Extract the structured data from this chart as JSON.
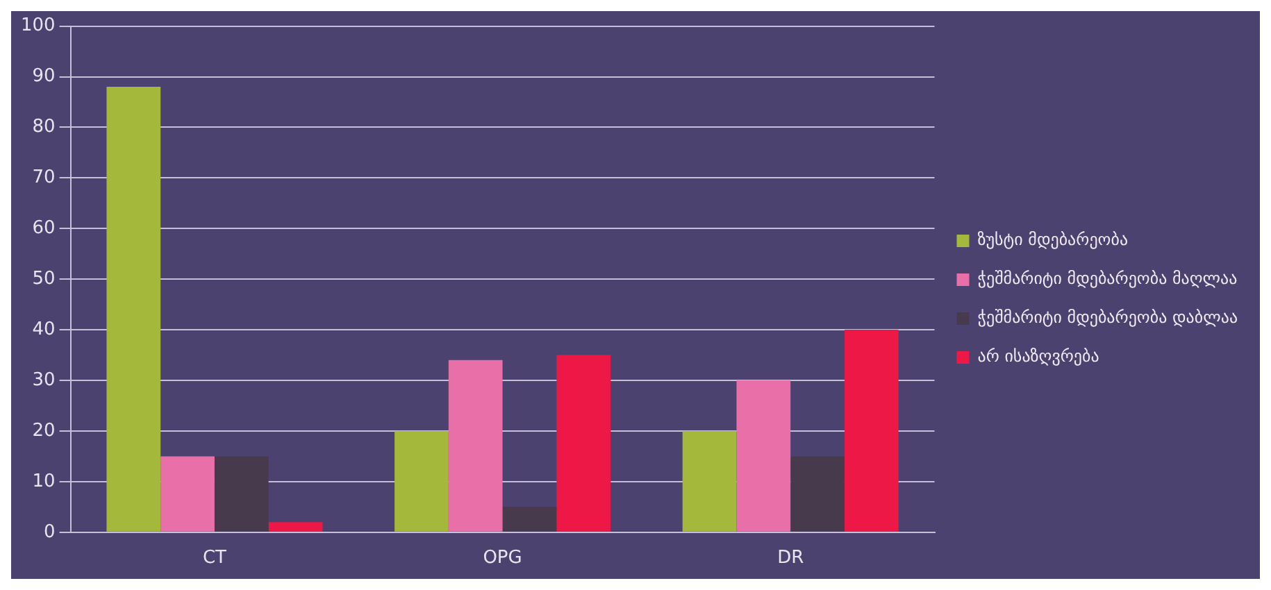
{
  "chart_data": {
    "type": "bar",
    "categories": [
      "CT",
      "OPG",
      "DR"
    ],
    "series": [
      {
        "name": "ზუსტი მდებარეობა",
        "color": "#a4b83c",
        "values": [
          88,
          20,
          20
        ]
      },
      {
        "name": "ჭეშმარიტი მდებარეობა მაღლაა",
        "color": "#e86fa8",
        "values": [
          15,
          34,
          30
        ]
      },
      {
        "name": "ჭეშმარიტი მდებარეობა დაბლაა",
        "color": "#463a4c",
        "values": [
          15,
          5,
          15
        ]
      },
      {
        "name": "არ ისაზღვრება",
        "color": "#ee1847",
        "values": [
          2,
          35,
          40
        ]
      }
    ],
    "ylim": [
      0,
      100
    ],
    "yticks": [
      0,
      10,
      20,
      30,
      40,
      50,
      60,
      70,
      80,
      90,
      100
    ],
    "grid": "y",
    "legend": "right"
  }
}
